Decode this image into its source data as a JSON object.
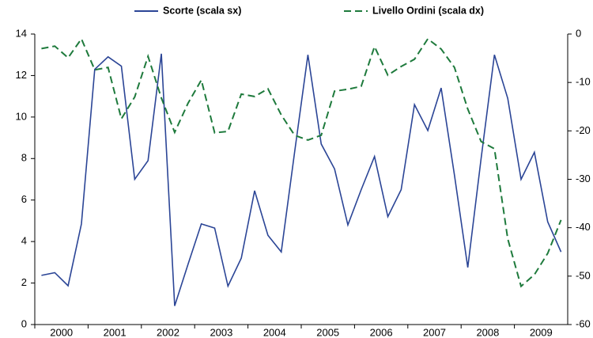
{
  "chart_data": {
    "type": "line",
    "categories": [
      "2000",
      null,
      null,
      null,
      "2001",
      null,
      null,
      null,
      "2002",
      null,
      null,
      null,
      "2003",
      null,
      null,
      null,
      "2004",
      null,
      null,
      null,
      "2005",
      null,
      null,
      null,
      "2006",
      null,
      null,
      null,
      "2007",
      null,
      null,
      null,
      "2008",
      null,
      null,
      null,
      "2009",
      null,
      null,
      null
    ],
    "series": [
      {
        "name": "Scorte (scala sx)",
        "color": "#2b4596",
        "axis": "y",
        "dashed": false,
        "values": [
          2.37,
          2.5,
          1.87,
          4.85,
          12.3,
          12.9,
          12.45,
          7.0,
          7.9,
          13.05,
          0.9,
          2.9,
          4.85,
          4.65,
          1.85,
          3.2,
          6.45,
          4.3,
          3.5,
          8.3,
          13.0,
          8.7,
          7.5,
          4.8,
          6.5,
          8.1,
          5.2,
          6.5,
          10.6,
          9.35,
          11.4,
          7.2,
          2.75,
          8.0,
          13.0,
          10.9,
          7.0,
          8.3,
          4.95,
          3.5
        ]
      },
      {
        "name": "Livello Ordini (scala dx)",
        "color": "#1e7a3c",
        "axis": "y2",
        "dashed": true,
        "values": [
          -3,
          -2.5,
          -4.9,
          -1,
          -7.4,
          -6.9,
          -17.5,
          -13,
          -4.6,
          -13.2,
          -20.3,
          -14.3,
          -9.5,
          -20.4,
          -20.1,
          -12.4,
          -12.9,
          -11.3,
          -16.7,
          -20.9,
          -21.9,
          -20.9,
          -11.8,
          -11.4,
          -10.8,
          -2.6,
          -8.5,
          -6.7,
          -5.2,
          -1,
          -3.1,
          -6.9,
          -15.5,
          -22.2,
          -23.7,
          -42.3,
          -52.1,
          -49.7,
          -45.3,
          -38.4
        ]
      }
    ],
    "ylim": [
      0,
      14
    ],
    "yticks": [
      0,
      2,
      4,
      6,
      8,
      10,
      12,
      14
    ],
    "y2lim": [
      -60,
      0
    ],
    "y2ticks": [
      -60,
      -50,
      -40,
      -30,
      -20,
      -10,
      0
    ],
    "grid": false,
    "legend": "top"
  }
}
